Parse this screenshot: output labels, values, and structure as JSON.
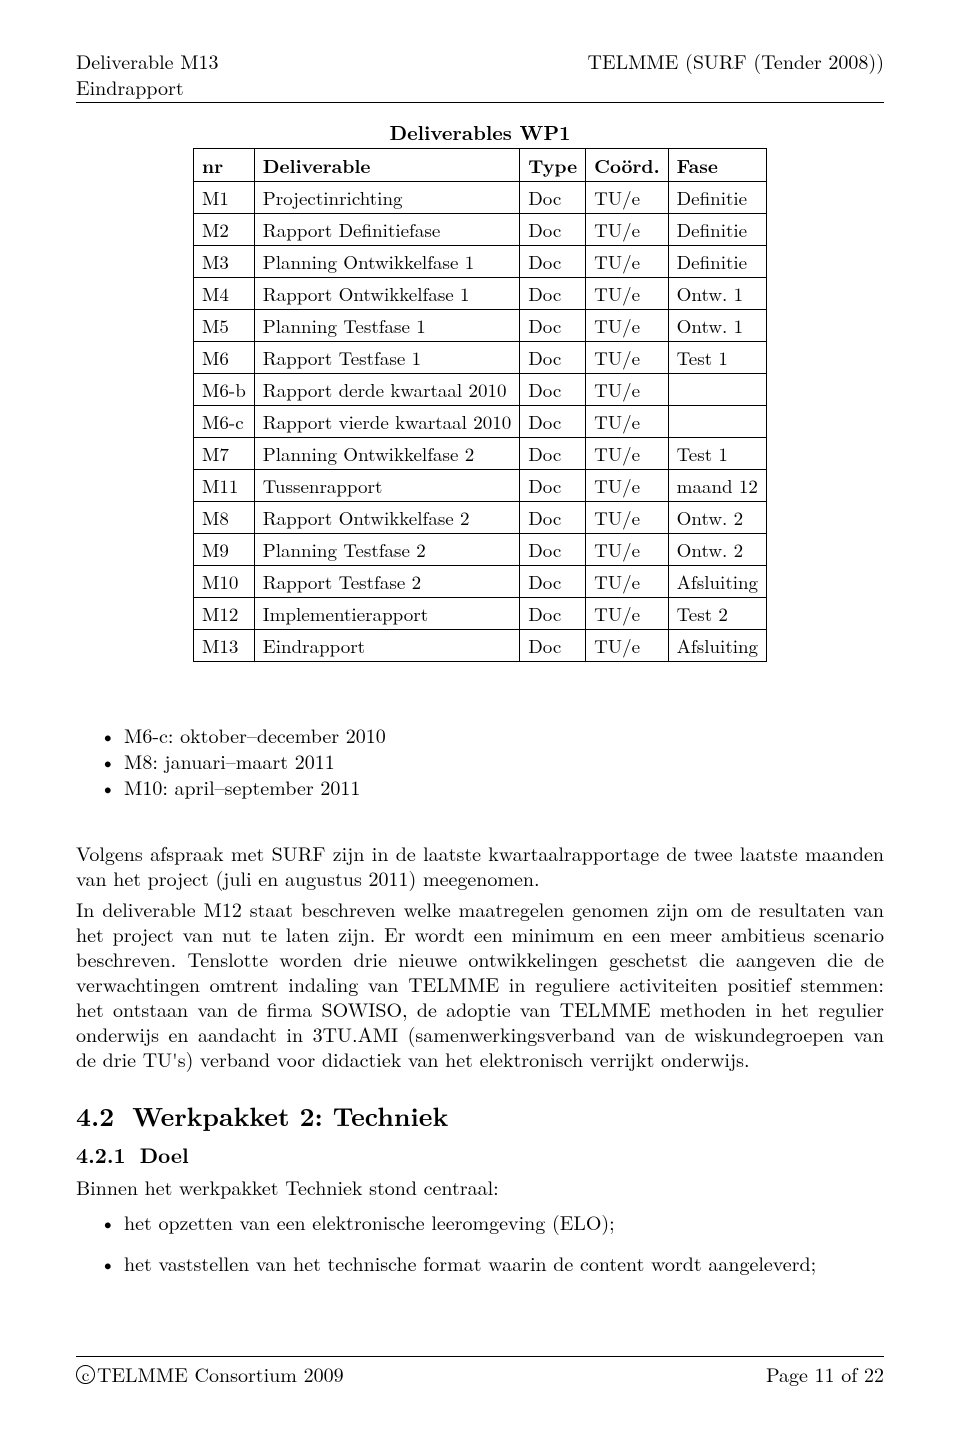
{
  "header": {
    "left_line1": "Deliverable M13",
    "left_line2": "Eindrapport",
    "right": "TELMME (SURF (Tender 2008))"
  },
  "table": {
    "title": "Deliverables WP1",
    "columns": [
      "nr",
      "Deliverable",
      "Type",
      "Coörd.",
      "Fase"
    ],
    "rows": [
      [
        "M1",
        "Projectinrichting",
        "Doc",
        "TU/e",
        "Definitie"
      ],
      [
        "M2",
        "Rapport Definitiefase",
        "Doc",
        "TU/e",
        "Definitie"
      ],
      [
        "M3",
        "Planning Ontwikkelfase 1",
        "Doc",
        "TU/e",
        "Definitie"
      ],
      [
        "M4",
        "Rapport Ontwikkelfase 1",
        "Doc",
        "TU/e",
        "Ontw. 1"
      ],
      [
        "M5",
        "Planning Testfase 1",
        "Doc",
        "TU/e",
        "Ontw. 1"
      ],
      [
        "M6",
        "Rapport Testfase 1",
        "Doc",
        "TU/e",
        "Test 1"
      ],
      [
        "M6-b",
        "Rapport derde kwartaal 2010",
        "Doc",
        "TU/e",
        ""
      ],
      [
        "M6-c",
        "Rapport vierde kwartaal 2010",
        "Doc",
        "TU/e",
        ""
      ],
      [
        "M7",
        "Planning Ontwikkelfase 2",
        "Doc",
        "TU/e",
        "Test 1"
      ],
      [
        "M11",
        "Tussenrapport",
        "Doc",
        "TU/e",
        "maand 12"
      ],
      [
        "M8",
        "Rapport Ontwikkelfase 2",
        "Doc",
        "TU/e",
        "Ontw. 2"
      ],
      [
        "M9",
        "Planning Testfase 2",
        "Doc",
        "TU/e",
        "Ontw. 2"
      ],
      [
        "M10",
        "Rapport Testfase 2",
        "Doc",
        "TU/e",
        "Afsluiting"
      ],
      [
        "M12",
        "Implementierapport",
        "Doc",
        "TU/e",
        "Test 2"
      ],
      [
        "M13",
        "Eindrapport",
        "Doc",
        "TU/e",
        "Afsluiting"
      ]
    ]
  },
  "mid_bullets": [
    "M6-c: oktober–december 2010",
    "M8: januari–maart 2011",
    "M10: april–september 2011"
  ],
  "para1": "Volgens afspraak met SURF zijn in de laatste kwartaalrapportage de twee laatste maanden van het project (juli en augustus 2011) meegenomen.",
  "para2": "In deliverable M12 staat beschreven welke maatregelen genomen zijn om de resultaten van het project van nut te laten zijn. Er wordt een minimum en een meer ambitieus scenario beschreven. Tenslotte worden drie nieuwe ontwikkelingen geschetst die aangeven die de verwachtingen omtrent indaling van TELMME in reguliere activiteiten positief stemmen: het ontstaan van de firma SOWISO, de adoptie van TELMME methoden in het regulier onderwijs en aandacht in 3TU.AMI (samenwerkingsverband van de wiskundegroepen van de drie TU's) verband voor didactiek van het elektronisch verrijkt onderwijs.",
  "section": {
    "num": "4.2",
    "title": "Werkpakket 2: Techniek"
  },
  "subsection": {
    "num": "4.2.1",
    "title": "Doel"
  },
  "intro_line": "Binnen het werkpakket Techniek stond centraal:",
  "bottom_bullets": [
    "het opzetten van een elektronische leeromgeving (ELO);",
    "het vaststellen van het technische format waarin de content wordt aangeleverd;"
  ],
  "footer": {
    "left": "TELMME Consortium 2009",
    "right": "Page 11 of 22",
    "copyright": "c"
  }
}
